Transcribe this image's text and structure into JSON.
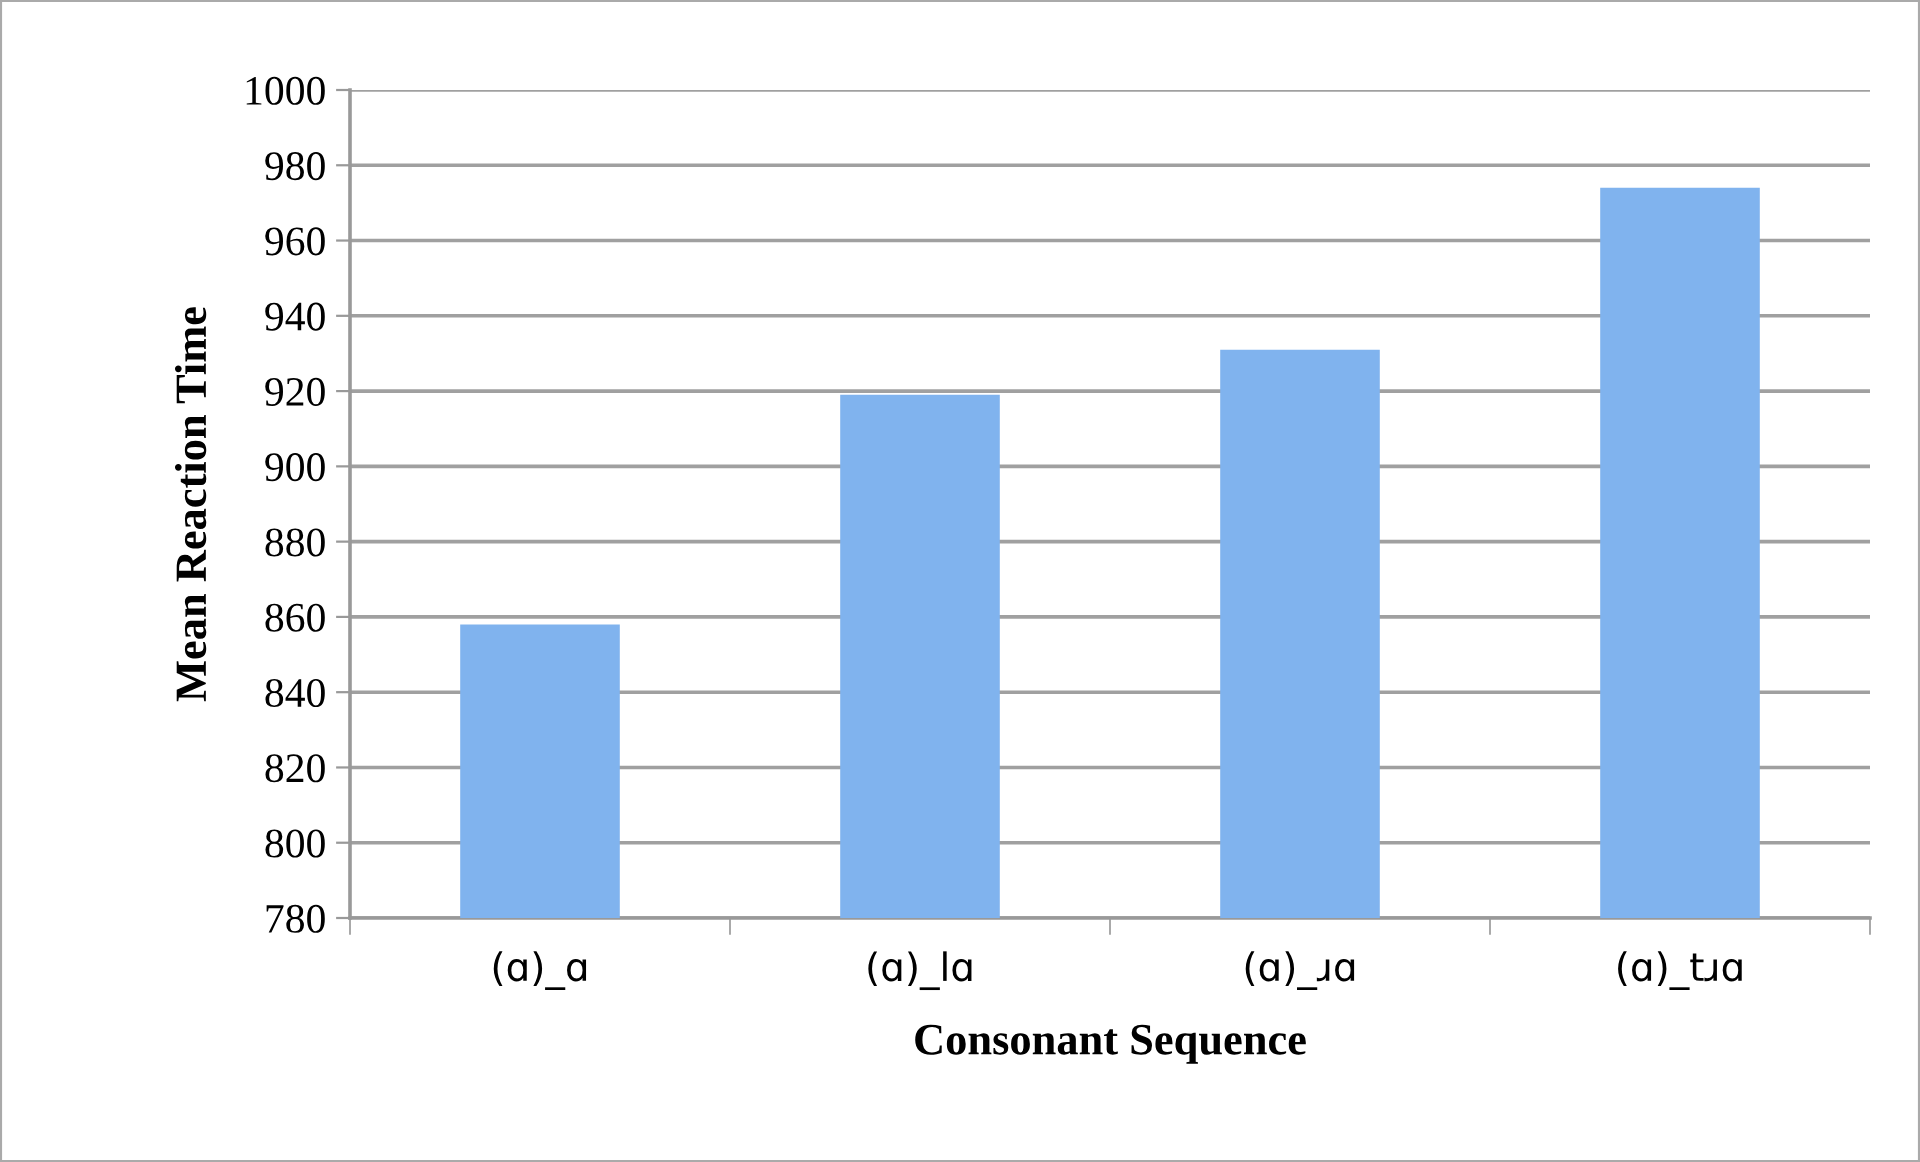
{
  "chart_data": {
    "type": "bar",
    "xlabel": "Consonant Sequence",
    "ylabel": "Mean Reaction Time",
    "categories": [
      "(ɑ)_ɑ",
      "(ɑ)_lɑ",
      "(ɑ)_ɹɑ",
      "(ɑ)_tɹɑ"
    ],
    "values": [
      858,
      919,
      931,
      974
    ],
    "color": "#80b3ee",
    "ylim": [
      780,
      1000
    ],
    "yticks": [
      780,
      800,
      820,
      840,
      860,
      880,
      900,
      920,
      940,
      960,
      980,
      1000
    ],
    "grid": "y",
    "legend": false
  }
}
